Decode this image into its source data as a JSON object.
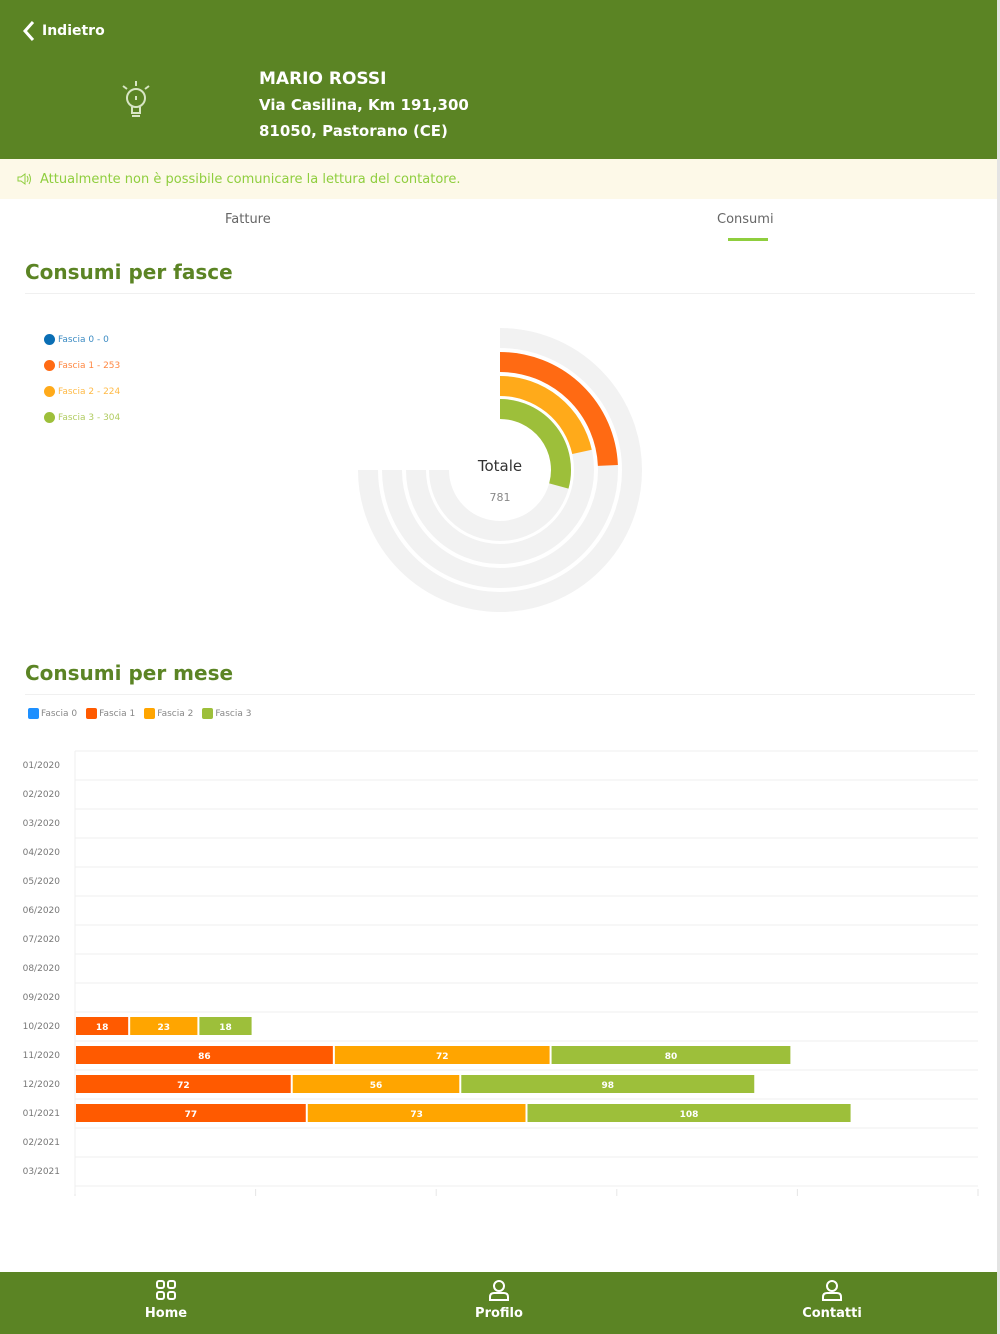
{
  "header": {
    "back_label": "Indietro",
    "name": "MARIO ROSSI",
    "address_line1": "Via Casilina, Km 191,300",
    "address_line2": "81050, Pastorano (CE)",
    "icon": "lightbulb-icon",
    "color": "#5b8424"
  },
  "notice": {
    "text": "Attualmente non è possibile comunicare la lettura del contatore.",
    "icon": "speaker-icon"
  },
  "tabs": [
    {
      "label": "Fatture",
      "active": false
    },
    {
      "label": "Consumi",
      "active": true
    }
  ],
  "sections": {
    "fasce_title": "Consumi per fasce",
    "mese_title": "Consumi per mese"
  },
  "chart_data": [
    {
      "type": "radial-bar",
      "center_label": "Totale",
      "center_value": "781",
      "legend": [
        "Fascia 0 - 0",
        "Fascia 1 - 253",
        "Fascia 2 - 224",
        "Fascia 3 - 304"
      ],
      "categories": [
        "Fascia 0",
        "Fascia 1",
        "Fascia 2",
        "Fascia 3"
      ],
      "values": [
        0,
        253,
        224,
        304
      ],
      "colors": [
        "#0a6eb4",
        "#ff6a13",
        "#ffaa1a",
        "#9dbf3a"
      ]
    },
    {
      "type": "bar",
      "orientation": "horizontal",
      "stacked": true,
      "categories": [
        "01/2020",
        "02/2020",
        "03/2020",
        "04/2020",
        "05/2020",
        "06/2020",
        "07/2020",
        "08/2020",
        "09/2020",
        "10/2020",
        "11/2020",
        "12/2020",
        "01/2021",
        "02/2021",
        "03/2021"
      ],
      "series": [
        {
          "name": "Fascia 0",
          "color": "#1e90ff",
          "values": [
            0,
            0,
            0,
            0,
            0,
            0,
            0,
            0,
            0,
            0,
            0,
            0,
            0,
            0,
            0
          ]
        },
        {
          "name": "Fascia 1",
          "color": "#ff5a00",
          "values": [
            0,
            0,
            0,
            0,
            0,
            0,
            0,
            0,
            0,
            18,
            86,
            72,
            77,
            0,
            0
          ]
        },
        {
          "name": "Fascia 2",
          "color": "#ffa500",
          "values": [
            0,
            0,
            0,
            0,
            0,
            0,
            0,
            0,
            0,
            23,
            72,
            56,
            73,
            0,
            0
          ]
        },
        {
          "name": "Fascia 3",
          "color": "#9dbf3a",
          "values": [
            0,
            0,
            0,
            0,
            0,
            0,
            0,
            0,
            0,
            18,
            80,
            98,
            108,
            0,
            0
          ]
        }
      ],
      "xlim": [
        0,
        300
      ],
      "grid": true,
      "legend": "top-left"
    }
  ],
  "nav": [
    {
      "label": "Home",
      "icon": "grid-icon"
    },
    {
      "label": "Profilo",
      "icon": "user-icon"
    },
    {
      "label": "Contatti",
      "icon": "user-icon"
    }
  ]
}
